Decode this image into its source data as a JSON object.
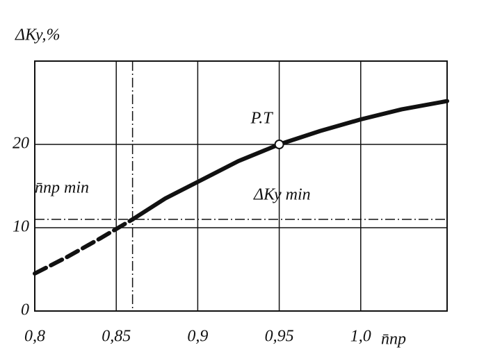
{
  "chart_data": {
    "type": "line",
    "y_label": "ΔКу,%",
    "x_label": "n̄пр",
    "annotations": [
      "n̄пр min",
      "ΔКу min"
    ],
    "point": {
      "label": "P.T",
      "x": 0.95,
      "y": 20
    },
    "series": [
      {
        "style": "dashed",
        "color": "#111111",
        "x": [
          0.8,
          0.82,
          0.84,
          0.86
        ],
        "values": [
          4.5,
          6.5,
          8.7,
          11
        ]
      },
      {
        "style": "solid",
        "color": "#111111",
        "x": [
          0.86,
          0.88,
          0.9,
          0.925,
          0.95,
          0.975,
          1.0,
          1.025,
          1.053
        ],
        "values": [
          11,
          13.5,
          15.5,
          18,
          20,
          21.6,
          23,
          24.2,
          25.2
        ]
      }
    ],
    "ref_lines": [
      {
        "axis": "x",
        "value": 0.86
      },
      {
        "axis": "y",
        "value": 11
      }
    ],
    "xlim": [
      0.8,
      1.053
    ],
    "ylim": [
      0,
      30
    ],
    "xticks": [
      {
        "value": 0.8,
        "label": "0,8"
      },
      {
        "value": 0.85,
        "label": "0,85"
      },
      {
        "value": 0.9,
        "label": "0,9"
      },
      {
        "value": 0.95,
        "label": "0,95"
      },
      {
        "value": 1.0,
        "label": "1,0"
      }
    ],
    "yticks": [
      0,
      10,
      20
    ],
    "grid": true
  }
}
